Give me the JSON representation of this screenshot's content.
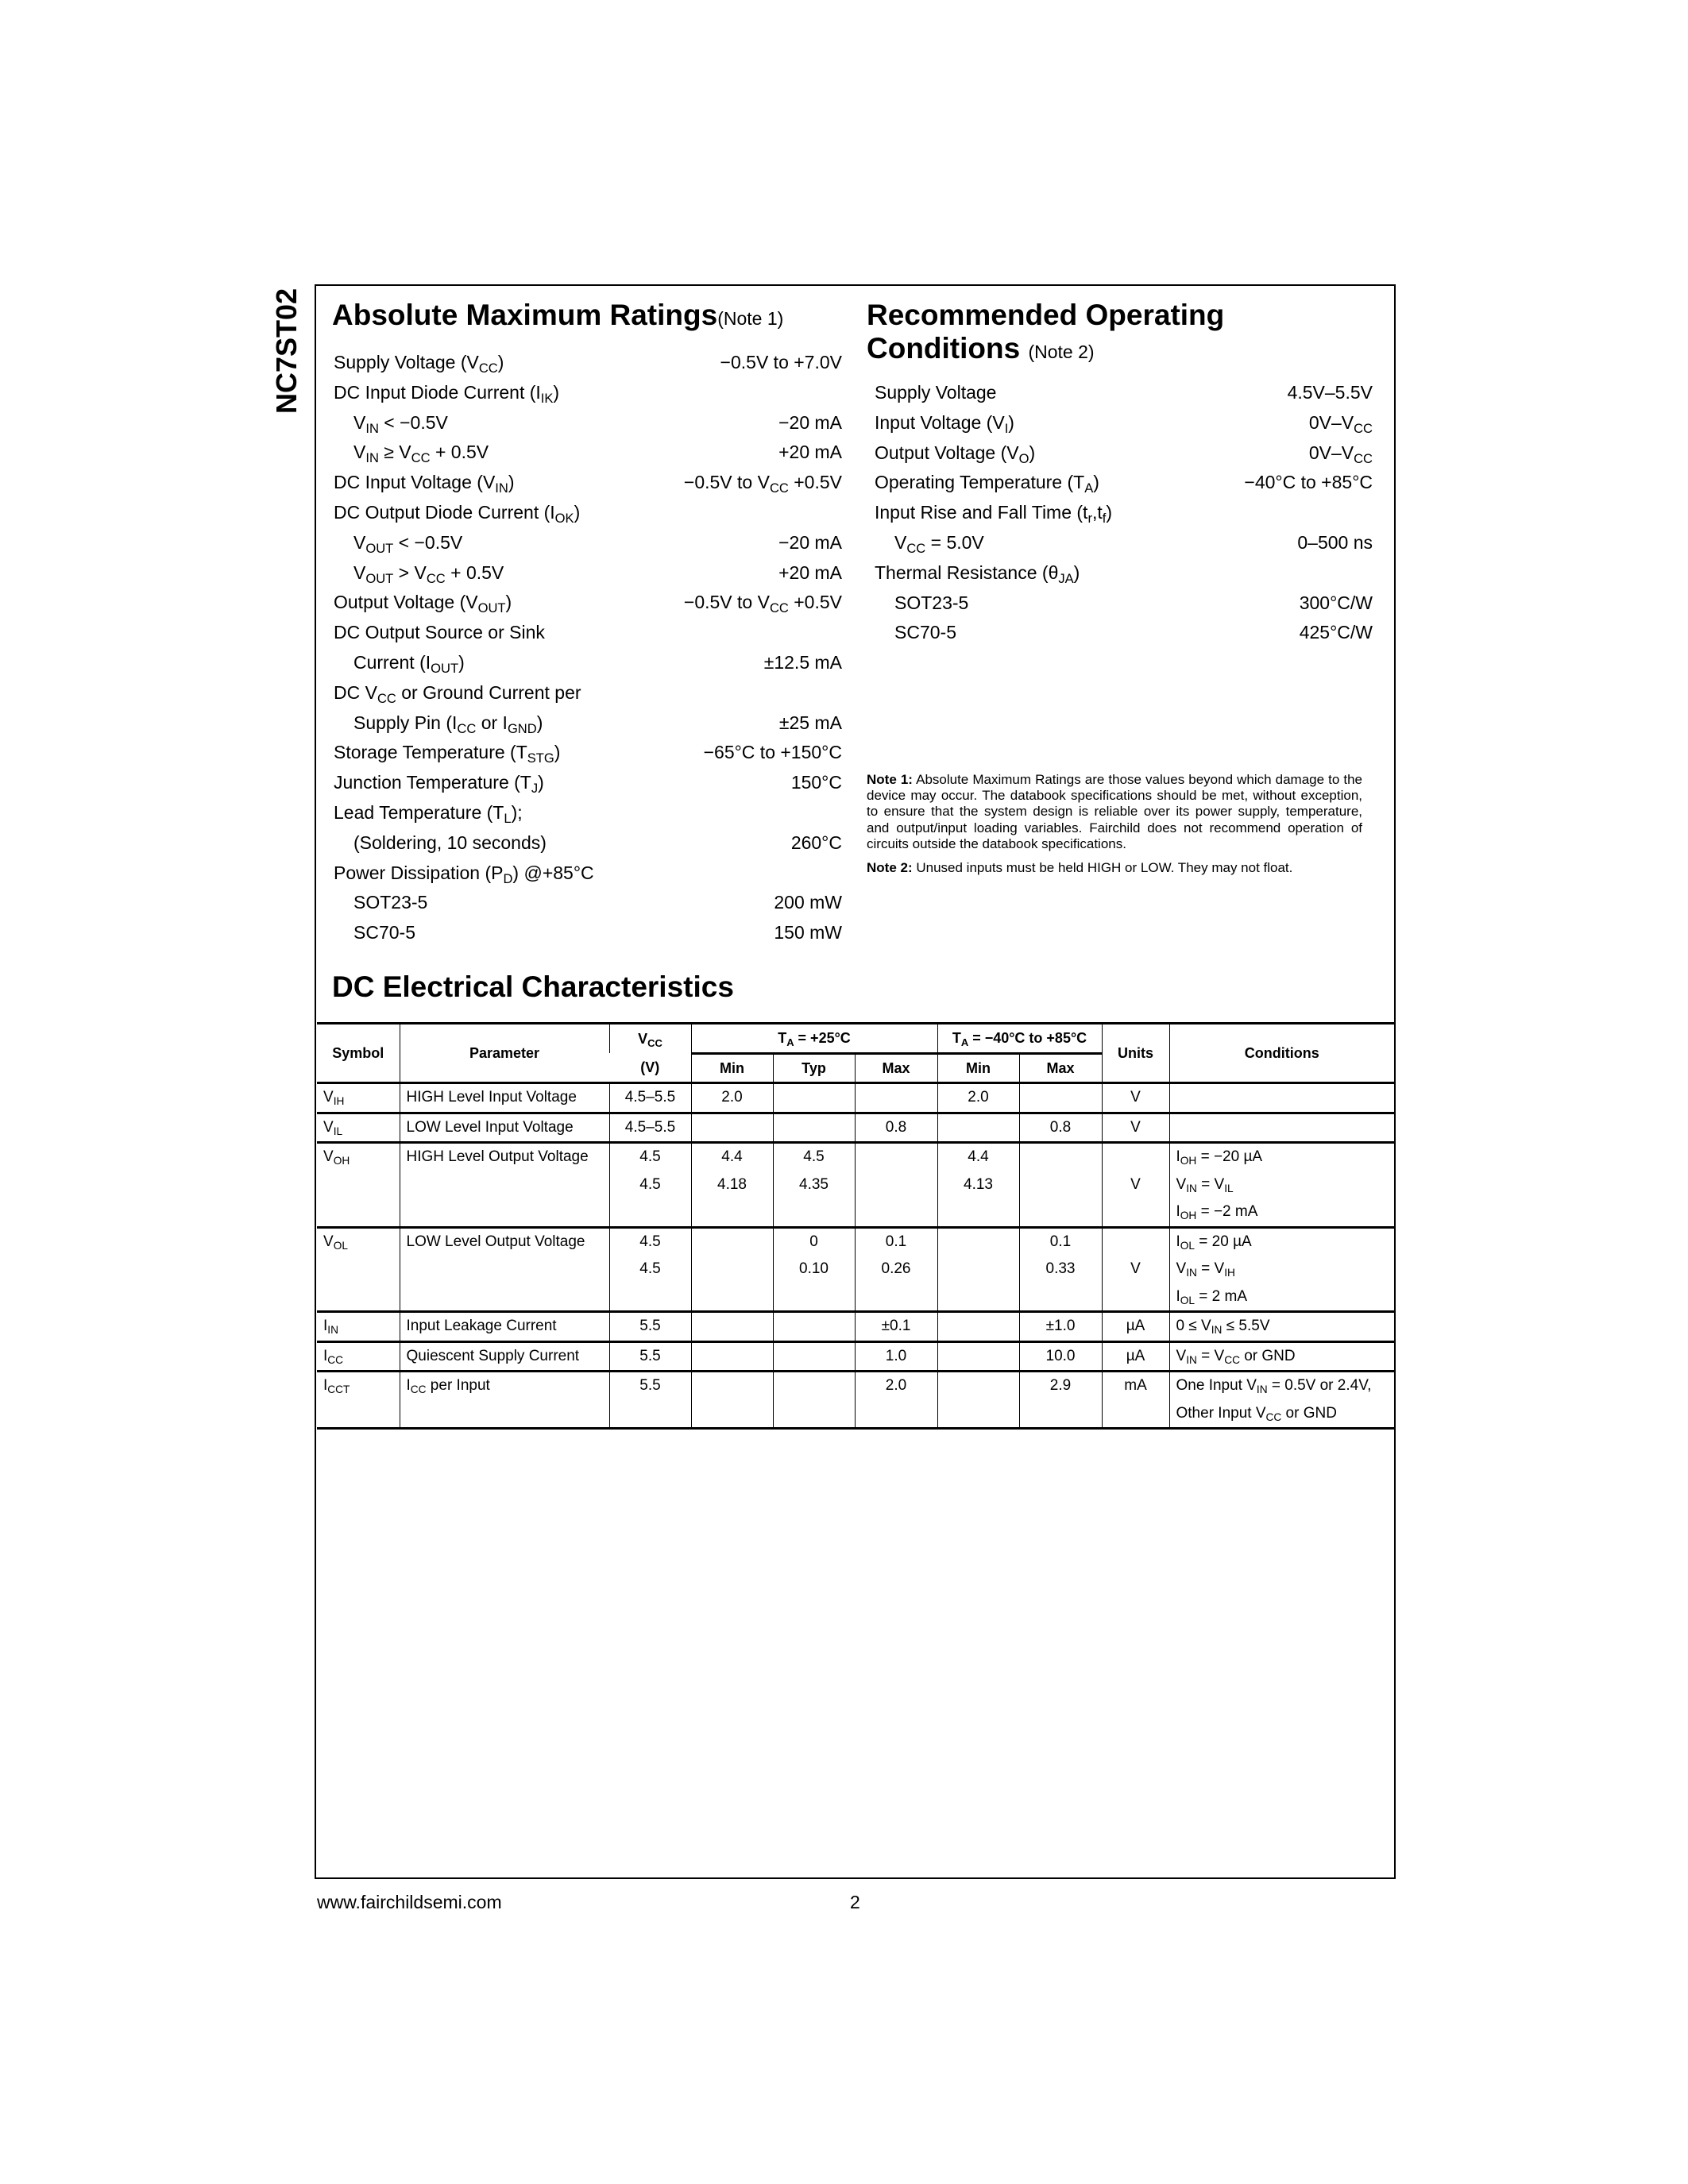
{
  "side_title": "NC7ST02",
  "amr": {
    "title": "Absolute Maximum Ratings",
    "note": "(Note 1)",
    "rows": [
      {
        "label": "Supply Voltage (V_{CC})",
        "value": "−0.5V to +7.0V"
      },
      {
        "label": "DC Input Diode Current (I_{IK})",
        "value": ""
      },
      {
        "label": "V_{IN} < −0.5V",
        "value": "−20 mA",
        "indent": true
      },
      {
        "label": "V_{IN} ≥ V_{CC} + 0.5V",
        "value": "+20 mA",
        "indent": true
      },
      {
        "label": "DC Input Voltage (V_{IN})",
        "value": "−0.5V to V_{CC} +0.5V"
      },
      {
        "label": "DC Output Diode Current (I_{OK})",
        "value": ""
      },
      {
        "label": "V_{OUT} < −0.5V",
        "value": "−20 mA",
        "indent": true
      },
      {
        "label": "V_{OUT} > V_{CC} + 0.5V",
        "value": "+20 mA",
        "indent": true
      },
      {
        "label": "Output Voltage (V_{OUT})",
        "value": "−0.5V to V_{CC} +0.5V"
      },
      {
        "label": "DC Output Source or Sink",
        "value": ""
      },
      {
        "label": "Current (I_{OUT})",
        "value": "±12.5 mA",
        "indent": true
      },
      {
        "label": "DC V_{CC} or Ground Current per",
        "value": ""
      },
      {
        "label": "Supply Pin (I_{CC} or I_{GND})",
        "value": "±25 mA",
        "indent": true
      },
      {
        "label": "Storage Temperature (T_{STG})",
        "value": "−65°C to +150°C"
      },
      {
        "label": "Junction Temperature (T_{J})",
        "value": "150°C"
      },
      {
        "label": "Lead Temperature (T_{L});",
        "value": ""
      },
      {
        "label": "(Soldering, 10 seconds)",
        "value": "260°C",
        "indent": true
      },
      {
        "label": "Power Dissipation (P_{D}) @+85°C",
        "value": ""
      },
      {
        "label": "SOT23-5",
        "value": "200 mW",
        "indent": true
      },
      {
        "label": "SC70-5",
        "value": "150 mW",
        "indent": true
      }
    ]
  },
  "roc": {
    "title_line1": "Recommended Operating",
    "title_line2": "Conditions",
    "note": "(Note 2)",
    "rows": [
      {
        "label": "Supply Voltage",
        "value": "4.5V–5.5V"
      },
      {
        "label": "Input Voltage (V_{I})",
        "value": "0V–V_{CC}"
      },
      {
        "label": "Output Voltage (V_{O})",
        "value": "0V–V_{CC}"
      },
      {
        "label": "Operating Temperature (T_{A})",
        "value": "−40°C to +85°C"
      },
      {
        "label": "Input Rise and Fall Time (t_{r},t_{f})",
        "value": ""
      },
      {
        "label": "V_{CC} = 5.0V",
        "value": "0–500 ns",
        "indent": true
      },
      {
        "label": "Thermal Resistance (θ_{JA})",
        "value": ""
      },
      {
        "label": "SOT23-5",
        "value": "300°C/W",
        "indent": true
      },
      {
        "label": "SC70-5",
        "value": "425°C/W",
        "indent": true
      }
    ]
  },
  "notes": [
    {
      "tag": "Note 1:",
      "text": "Absolute Maximum Ratings are those values beyond which damage to the device may occur. The databook specifications should be met, without exception, to ensure that the system design is reliable over its power supply, temperature, and output/input loading variables. Fairchild does not recommend operation of circuits outside the databook specifications."
    },
    {
      "tag": "Note 2:",
      "text": "Unused inputs must be held HIGH or LOW. They may not float."
    }
  ],
  "dc": {
    "title": "DC Electrical Characteristics",
    "headers": {
      "symbol": "Symbol",
      "parameter": "Parameter",
      "vcc": "V_{CC}",
      "vcc_unit": "(V)",
      "ta25": "T_{A} = +25°C",
      "ta_range": "T_{A} = −40°C to +85°C",
      "units": "Units",
      "conditions": "Conditions",
      "min": "Min",
      "typ": "Typ",
      "max": "Max"
    },
    "rows": [
      {
        "symbol": "V_{IH}",
        "parameter": "HIGH Level Input Voltage",
        "vcc": [
          "4.5–5.5"
        ],
        "min25": [
          "2.0"
        ],
        "typ25": [],
        "max25": [],
        "min": [
          "2.0"
        ],
        "max": [],
        "units": [
          "V"
        ],
        "conditions": []
      },
      {
        "symbol": "V_{IL}",
        "parameter": "LOW Level Input Voltage",
        "vcc": [
          "4.5–5.5"
        ],
        "min25": [],
        "typ25": [],
        "max25": [
          "0.8"
        ],
        "min": [],
        "max": [
          "0.8"
        ],
        "units": [
          "V"
        ],
        "conditions": []
      },
      {
        "symbol": "V_{OH}",
        "parameter": "HIGH Level Output Voltage",
        "vcc": [
          "4.5",
          "4.5"
        ],
        "min25": [
          "4.4",
          "4.18"
        ],
        "typ25": [
          "4.5",
          "4.35"
        ],
        "max25": [],
        "min": [
          "4.4",
          "4.13"
        ],
        "max": [],
        "units": [
          "",
          "V"
        ],
        "conditions": [
          "I_{OH} = −20 µA",
          "V_{IN} = V_{IL}",
          "I_{OH} = −2 mA"
        ]
      },
      {
        "symbol": "V_{OL}",
        "parameter": "LOW Level Output Voltage",
        "vcc": [
          "4.5",
          "4.5"
        ],
        "min25": [],
        "typ25": [
          "0",
          "0.10"
        ],
        "max25": [
          "0.1",
          "0.26"
        ],
        "min": [],
        "max": [
          "0.1",
          "0.33"
        ],
        "units": [
          "",
          "V"
        ],
        "conditions": [
          "I_{OL} = 20 µA",
          "V_{IN} = V_{IH}",
          "I_{OL} = 2 mA"
        ]
      },
      {
        "symbol": "I_{IN}",
        "parameter": "Input Leakage Current",
        "vcc": [
          "5.5"
        ],
        "min25": [],
        "typ25": [],
        "max25": [
          "±0.1"
        ],
        "min": [],
        "max": [
          "±1.0"
        ],
        "units": [
          "µA"
        ],
        "conditions": [
          "0 ≤ V_{IN} ≤ 5.5V"
        ]
      },
      {
        "symbol": "I_{CC}",
        "parameter": "Quiescent Supply Current",
        "vcc": [
          "5.5"
        ],
        "min25": [],
        "typ25": [],
        "max25": [
          "1.0"
        ],
        "min": [],
        "max": [
          "10.0"
        ],
        "units": [
          "µA"
        ],
        "conditions": [
          "V_{IN} = V_{CC} or GND"
        ]
      },
      {
        "symbol": "I_{CCT}",
        "parameter": "I_{CC} per Input",
        "vcc": [
          "5.5"
        ],
        "min25": [],
        "typ25": [],
        "max25": [
          "2.0"
        ],
        "min": [],
        "max": [
          "2.9"
        ],
        "units": [
          "mA"
        ],
        "conditions": [
          "One Input V_{IN} = 0.5V or 2.4V,",
          "Other Input V_{CC} or GND"
        ]
      }
    ]
  },
  "footer": {
    "url": "www.fairchildsemi.com",
    "page": "2"
  }
}
